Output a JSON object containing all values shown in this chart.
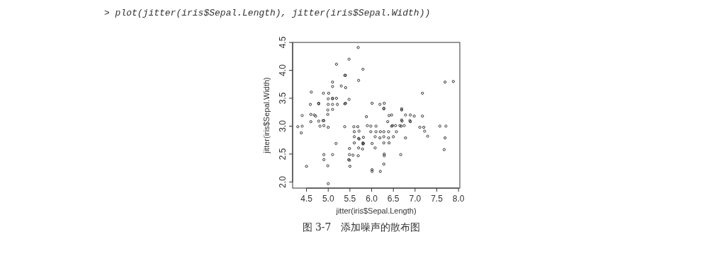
{
  "chart_data": {
    "type": "scatter",
    "xlabel": "jitter(iris$Sepal.Length)",
    "ylabel": "jitter(iris$Sepal.Width)",
    "annotations": [
      "> plot(jitter(iris$Sepal.Length), jitter(iris$Sepal.Width))",
      "图 3-7　添加噪声的散布图"
    ],
    "xlim": [
      4.18,
      8.03
    ],
    "ylim": [
      1.89,
      4.5
    ],
    "xticks": [
      {
        "value": 4.5,
        "label": "4.5"
      },
      {
        "value": 5,
        "label": "5.0"
      },
      {
        "value": 5.5,
        "label": "5.5"
      },
      {
        "value": 6,
        "label": "6.0"
      },
      {
        "value": 6.5,
        "label": "6.5"
      },
      {
        "value": 7,
        "label": "7.0"
      },
      {
        "value": 7.5,
        "label": "7.5"
      },
      {
        "value": 8,
        "label": "8.0"
      }
    ],
    "yticks": [
      {
        "value": 2,
        "label": "2.0"
      },
      {
        "value": 2.5,
        "label": "2.5"
      },
      {
        "value": 3,
        "label": "3.0"
      },
      {
        "value": 3.5,
        "label": "3.5"
      },
      {
        "value": 4,
        "label": "4.0"
      },
      {
        "value": 4.5,
        "label": "4.5"
      }
    ],
    "marker": "circle",
    "series": [
      {
        "color": "#333333",
        "x": [
          5.69,
          5.48,
          5.19,
          5.8,
          5.38,
          5.4,
          5.7,
          5.1,
          5.1,
          5.3,
          5.4,
          4.61,
          4.89,
          5.01,
          4.59,
          4.78,
          4.78,
          5.0,
          5.1,
          5.1,
          5.19,
          5.48,
          5.0,
          5.1,
          5.21,
          5.38,
          5.4,
          4.99,
          5.1,
          4.4,
          4.6,
          4.68,
          4.71,
          4.99,
          4.78,
          4.88,
          4.9,
          4.6,
          5.88,
          4.3,
          4.4,
          4.38,
          4.81,
          4.9,
          5.0,
          5.38,
          5.59,
          5.68,
          5.9,
          5.6,
          5.71,
          5.6,
          5.7,
          5.71,
          5.81,
          5.6,
          5.8,
          5.81,
          5.8,
          5.18,
          5.7,
          5.79,
          5.49,
          4.9,
          5.1,
          5.49,
          5.57,
          5.69,
          4.9,
          5.47,
          5.49,
          4.5,
          4.99,
          5.5,
          5.0,
          6.4,
          6.46,
          6.78,
          6.89,
          6.98,
          7.17,
          6.69,
          6.7,
          6.88,
          6.89,
          6.37,
          5.98,
          6.1,
          6.46,
          6.48,
          6.55,
          6.65,
          6.68,
          6.75,
          7.11,
          7.2,
          7.57,
          7.71,
          7.22,
          5.98,
          6.1,
          6.2,
          6.28,
          6.39,
          6.57,
          7.29,
          6.08,
          6.19,
          6.28,
          6.39,
          6.5,
          6.78,
          7.69,
          6.01,
          6.28,
          6.4,
          6.08,
          6.29,
          6.29,
          6.67,
          7.67,
          6.28,
          6.01,
          6.01,
          6.2,
          7.69,
          7.88,
          7.17,
          6.01,
          6.19,
          6.29,
          6.28,
          6.28,
          6.69,
          6.69
        ],
        "values": [
          4.41,
          4.2,
          4.11,
          4.02,
          3.91,
          3.91,
          3.82,
          3.79,
          3.71,
          3.72,
          3.69,
          3.61,
          3.59,
          3.59,
          3.39,
          3.4,
          3.41,
          3.49,
          3.49,
          3.5,
          3.5,
          3.48,
          3.39,
          3.39,
          3.39,
          3.4,
          3.41,
          3.29,
          3.3,
          3.19,
          3.21,
          3.2,
          3.18,
          3.21,
          3.09,
          3.1,
          3.1,
          3.08,
          3.17,
          2.99,
          3.0,
          2.88,
          3.0,
          3.01,
          2.98,
          2.99,
          2.99,
          2.99,
          3.01,
          2.9,
          2.91,
          2.81,
          2.78,
          2.77,
          2.8,
          2.7,
          2.7,
          2.69,
          2.68,
          2.69,
          2.61,
          2.59,
          2.6,
          2.49,
          2.49,
          2.49,
          2.48,
          2.47,
          2.4,
          2.4,
          2.39,
          2.28,
          2.29,
          2.28,
          1.97,
          3.19,
          3.2,
          3.2,
          3.2,
          3.18,
          3.18,
          3.11,
          3.09,
          3.1,
          3.08,
          3.08,
          3.0,
          3.0,
          3.0,
          3.01,
          3.01,
          3.01,
          3.0,
          3.01,
          2.98,
          2.98,
          3.0,
          3.0,
          2.91,
          2.9,
          2.9,
          2.9,
          2.9,
          2.9,
          2.9,
          2.82,
          2.81,
          2.79,
          2.81,
          2.79,
          2.81,
          2.79,
          2.79,
          2.69,
          2.7,
          2.7,
          2.61,
          2.5,
          2.47,
          2.49,
          2.58,
          2.32,
          2.22,
          2.19,
          2.19,
          3.79,
          3.8,
          3.59,
          3.41,
          3.39,
          3.41,
          3.32,
          3.31,
          3.31,
          3.29
        ]
      }
    ]
  }
}
